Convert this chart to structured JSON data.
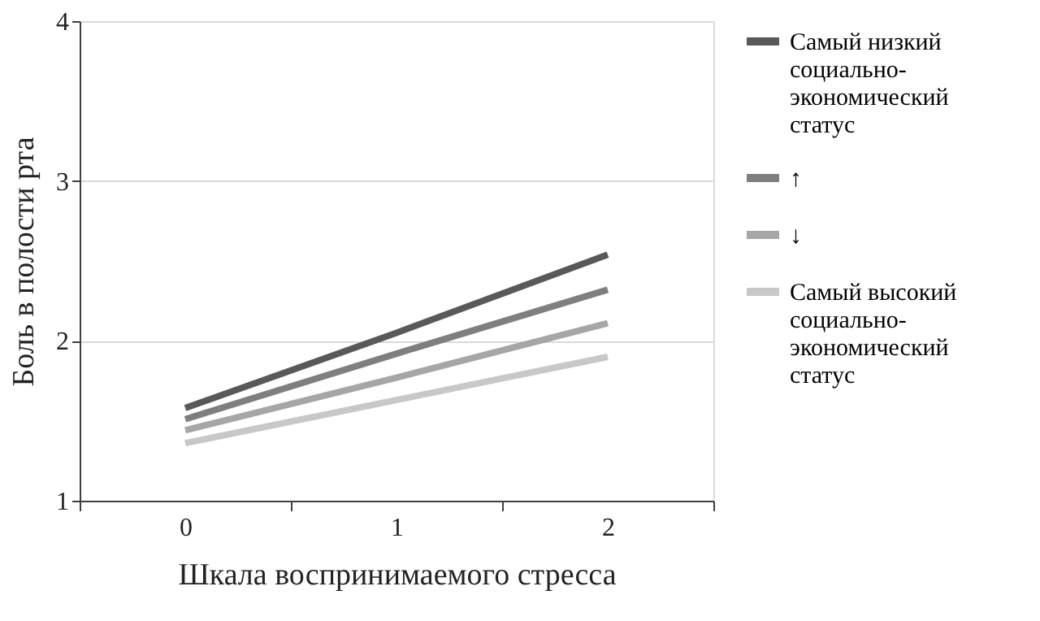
{
  "chart_data": {
    "type": "line",
    "xlabel": "Шкала воспринимаемого стресса",
    "ylabel": "Боль в полости рта",
    "categories": [
      "0",
      "1",
      "2"
    ],
    "series": [
      {
        "name": "Самый низкий социально-экономический статус",
        "color": "#595959",
        "values": [
          1.58,
          2.05,
          2.54
        ]
      },
      {
        "name": "↑",
        "color": "#7f7f7f",
        "values": [
          1.51,
          1.92,
          2.32
        ]
      },
      {
        "name": "↓",
        "color": "#a6a6a6",
        "values": [
          1.44,
          1.77,
          2.11
        ]
      },
      {
        "name": "Самый высокий социально-экономический статус",
        "color": "#c8c8c8",
        "values": [
          1.36,
          1.63,
          1.9
        ]
      }
    ],
    "ylim": [
      1,
      4
    ],
    "yticks": [
      1,
      2,
      3,
      4
    ],
    "grid": "y",
    "legend": "right",
    "marker": "none",
    "line_style": "solid"
  }
}
